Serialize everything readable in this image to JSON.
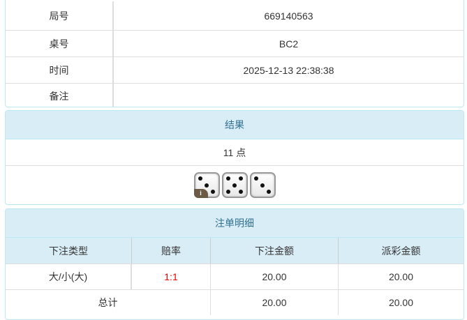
{
  "info": {
    "rows": [
      {
        "label": "局号",
        "value": "669140563"
      },
      {
        "label": "桌号",
        "value": "BC2"
      },
      {
        "label": "时间",
        "value": "2025-12-13 22:38:38"
      },
      {
        "label": "备注",
        "value": ""
      }
    ]
  },
  "result": {
    "title": "结果",
    "points": "11 点",
    "dice": [
      3,
      5,
      3
    ],
    "info_badge": "i"
  },
  "bets": {
    "title": "注单明细",
    "headers": [
      "下注类型",
      "赔率",
      "下注金额",
      "派彩金额"
    ],
    "rows": [
      {
        "type": "大/小(大)",
        "odds": "1:1",
        "amount": "20.00",
        "payout": "20.00"
      }
    ],
    "total": {
      "label": "总计",
      "amount": "20.00",
      "payout": "20.00"
    }
  },
  "colors": {
    "header_bg": "#d9edf7",
    "header_text": "#31708f",
    "odds": "#e00000"
  }
}
